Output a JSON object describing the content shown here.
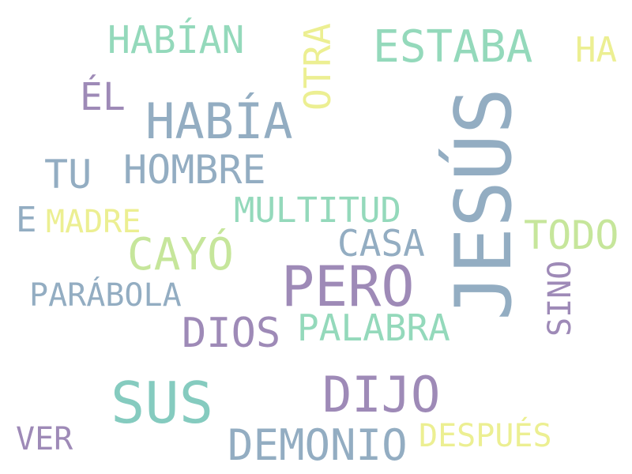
{
  "palette": {
    "slate_blue": "#93adc2",
    "purple": "#9e8ab7",
    "mint": "#94d9bb",
    "light_green": "#c6e69b",
    "yellow": "#ecef92",
    "teal": "#85cbbf"
  },
  "words": [
    {
      "id": "jesus",
      "text": "JESÚS",
      "color": "#93adc2"
    },
    {
      "id": "pero",
      "text": "PERO",
      "color": "#9e8ab7"
    },
    {
      "id": "dijo",
      "text": "DIJO",
      "color": "#9e8ab7"
    },
    {
      "id": "sus",
      "text": "SUS",
      "color": "#85cbbf"
    },
    {
      "id": "habia",
      "text": "HABÍA",
      "color": "#93adc2"
    },
    {
      "id": "estaba",
      "text": "ESTABA",
      "color": "#94d9bb"
    },
    {
      "id": "demonio",
      "text": "DEMONIO",
      "color": "#93adc2"
    },
    {
      "id": "cayo",
      "text": "CAYÓ",
      "color": "#c6e69b"
    },
    {
      "id": "dios",
      "text": "DIOS",
      "color": "#9e8ab7"
    },
    {
      "id": "hombre",
      "text": "HOMBRE",
      "color": "#93adc2"
    },
    {
      "id": "habian",
      "text": "HABÍAN",
      "color": "#94d9bb"
    },
    {
      "id": "todo",
      "text": "TODO",
      "color": "#c6e69b"
    },
    {
      "id": "palabra",
      "text": "PALABRA",
      "color": "#94d9bb"
    },
    {
      "id": "multitud",
      "text": "MULTITUD",
      "color": "#94d9bb"
    },
    {
      "id": "casa",
      "text": "CASA",
      "color": "#93adc2"
    },
    {
      "id": "parabola",
      "text": "PARÁBOLA",
      "color": "#93adc2"
    },
    {
      "id": "despues",
      "text": "DESPUÉS",
      "color": "#ecef92"
    },
    {
      "id": "el",
      "text": "ÉL",
      "color": "#9e8ab7"
    },
    {
      "id": "tu",
      "text": "TU",
      "color": "#93adc2"
    },
    {
      "id": "otra",
      "text": "OTRA",
      "color": "#ecef92"
    },
    {
      "id": "ha",
      "text": "HA",
      "color": "#ecef92"
    },
    {
      "id": "madre",
      "text": "MADRE",
      "color": "#ecef92"
    },
    {
      "id": "ver",
      "text": "VER",
      "color": "#9e8ab7"
    },
    {
      "id": "sino",
      "text": "SINO",
      "color": "#9e8ab7"
    },
    {
      "id": "e",
      "text": "E",
      "color": "#93adc2"
    }
  ]
}
